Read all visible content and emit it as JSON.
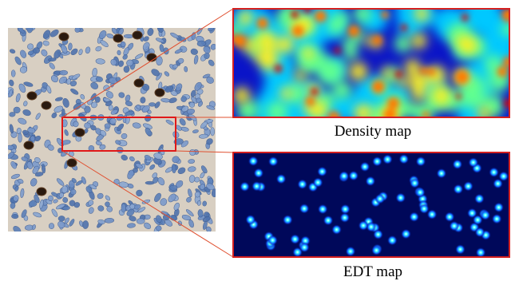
{
  "panels": [
    {
      "label": "Density map"
    },
    {
      "label": "EDT map"
    }
  ]
}
